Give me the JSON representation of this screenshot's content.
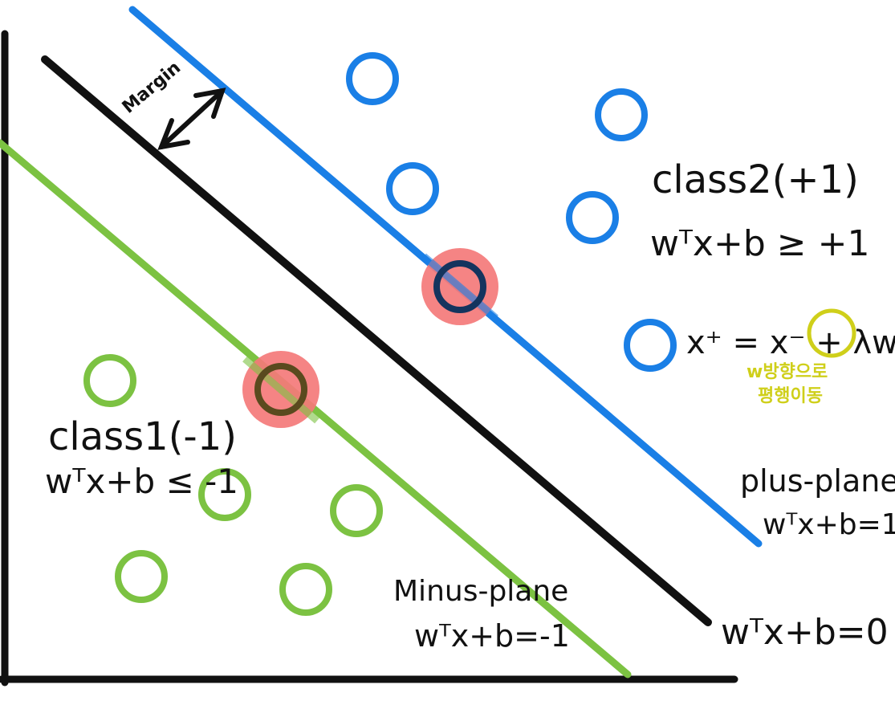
{
  "colors": {
    "axis": "#111111",
    "hyperplane": "#111111",
    "plus_plane": "#1a7fe6",
    "minus_plane": "#7cc242",
    "class2_points": "#1a7fe6",
    "class1_points": "#7cc242",
    "support_vector_highlight": "#f47a7a",
    "annotation_yellow": "#cfcf1a"
  },
  "labels": {
    "margin": "Margin",
    "class2_name": "class2(+1)",
    "class2_rule": "wᵀx+b ≥ +1",
    "translation_formula": "x⁺ = x⁻ + λw",
    "translation_note_line1": "w방향으로",
    "translation_note_line2": "평행이동",
    "class1_name": "class1(-1)",
    "class1_rule": "wᵀx+b ≤ -1",
    "plus_plane_name": "plus-plane",
    "plus_plane_eq": "wᵀx+b=1",
    "minus_plane_name": "Minus-plane",
    "minus_plane_eq": "wᵀx+b=-1",
    "hyperplane_eq": "wᵀx+b=0"
  }
}
